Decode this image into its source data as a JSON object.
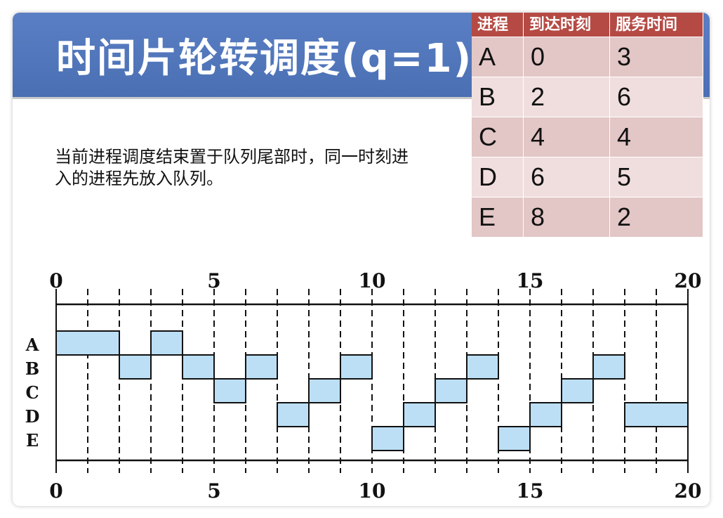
{
  "title": "时间片轮转调度(q=1)",
  "note": "当前进程调度结束置于队列尾部时，同一时刻进入的进程先放入队列。",
  "table": {
    "headers": [
      "进程",
      "到达时刻",
      "服务时间"
    ],
    "rows": [
      [
        "A",
        "0",
        "3"
      ],
      [
        "B",
        "2",
        "6"
      ],
      [
        "C",
        "4",
        "4"
      ],
      [
        "D",
        "6",
        "5"
      ],
      [
        "E",
        "8",
        "2"
      ]
    ]
  },
  "colors": {
    "title_bar": "#4a6fb3",
    "table_header": "#b54a44",
    "table_row_odd": "#e3c6c6",
    "table_row_even": "#f0dede",
    "gantt_block": "#bcdff5"
  },
  "chart_data": {
    "type": "gantt",
    "x_ticks_labeled": [
      0,
      5,
      10,
      15,
      20
    ],
    "x_range": [
      0,
      20
    ],
    "rows": [
      "A",
      "B",
      "C",
      "D",
      "E"
    ],
    "segments": [
      {
        "process": "A",
        "start": 0,
        "end": 2
      },
      {
        "process": "B",
        "start": 2,
        "end": 3
      },
      {
        "process": "A",
        "start": 3,
        "end": 4
      },
      {
        "process": "B",
        "start": 4,
        "end": 5
      },
      {
        "process": "C",
        "start": 5,
        "end": 6
      },
      {
        "process": "B",
        "start": 6,
        "end": 7
      },
      {
        "process": "D",
        "start": 7,
        "end": 8
      },
      {
        "process": "C",
        "start": 8,
        "end": 9
      },
      {
        "process": "B",
        "start": 9,
        "end": 10
      },
      {
        "process": "E",
        "start": 10,
        "end": 11
      },
      {
        "process": "D",
        "start": 11,
        "end": 12
      },
      {
        "process": "C",
        "start": 12,
        "end": 13
      },
      {
        "process": "B",
        "start": 13,
        "end": 14
      },
      {
        "process": "E",
        "start": 14,
        "end": 15
      },
      {
        "process": "D",
        "start": 15,
        "end": 16
      },
      {
        "process": "C",
        "start": 16,
        "end": 17
      },
      {
        "process": "B",
        "start": 17,
        "end": 18
      },
      {
        "process": "D",
        "start": 18,
        "end": 20
      }
    ]
  }
}
